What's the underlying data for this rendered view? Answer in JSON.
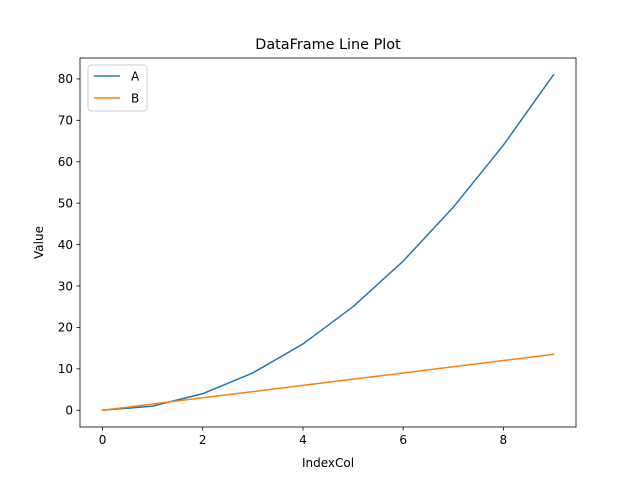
{
  "chart_data": {
    "type": "line",
    "title": "DataFrame Line Plot",
    "xlabel": "IndexCol",
    "ylabel": "Value",
    "x": [
      0,
      1,
      2,
      3,
      4,
      5,
      6,
      7,
      8,
      9
    ],
    "series": [
      {
        "name": "A",
        "color": "#1f77b4",
        "values": [
          0,
          1,
          4,
          9,
          16,
          25,
          36,
          49,
          64,
          81
        ]
      },
      {
        "name": "B",
        "color": "#ff7f0e",
        "values": [
          0,
          1.5,
          3,
          4.5,
          6,
          7.5,
          9,
          10.5,
          12,
          13.5
        ]
      }
    ],
    "xlim": [
      -0.45,
      9.45
    ],
    "ylim": [
      -4.05,
      85.05
    ],
    "xticks": [
      0,
      2,
      4,
      6,
      8
    ],
    "yticks": [
      0,
      10,
      20,
      30,
      40,
      50,
      60,
      70,
      80
    ],
    "grid": false,
    "legend_position": "top-left"
  }
}
